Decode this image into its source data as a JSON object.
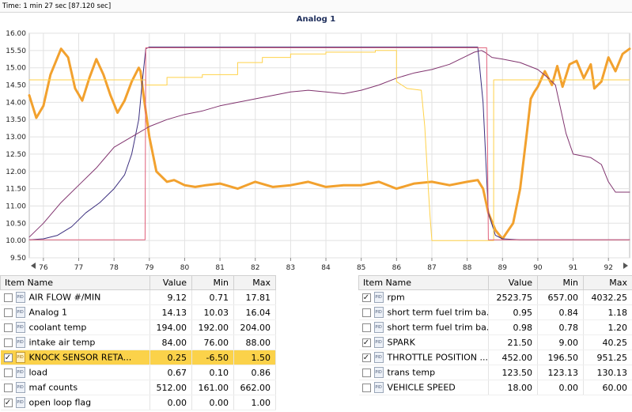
{
  "time_label": "Time: 1 min 27 sec [87.120 sec]",
  "chart_data": {
    "type": "line",
    "title": "Analog 1",
    "xlim": [
      75.6,
      92.6
    ],
    "ylim": [
      9.5,
      16.0
    ],
    "x_ticks": [
      "76",
      "77",
      "78",
      "79",
      "80",
      "81",
      "82",
      "83",
      "84",
      "85",
      "86",
      "87",
      "88",
      "89",
      "90",
      "91",
      "92"
    ],
    "y_ticks": [
      "9.50",
      "10.00",
      "10.50",
      "11.00",
      "11.50",
      "12.00",
      "12.50",
      "13.00",
      "13.50",
      "14.00",
      "14.50",
      "15.00",
      "15.50",
      "16.00"
    ],
    "grid": true,
    "series": [
      {
        "color": "#f2a12e",
        "width": 3,
        "x": [
          75.6,
          75.8,
          76.0,
          76.2,
          76.5,
          76.7,
          76.9,
          77.1,
          77.3,
          77.5,
          77.7,
          77.9,
          78.1,
          78.3,
          78.5,
          78.7,
          78.75,
          78.85,
          79.0,
          79.2,
          79.5,
          79.7,
          80.0,
          80.3,
          80.6,
          81.0,
          81.5,
          82.0,
          82.5,
          83.0,
          83.5,
          84.0,
          84.5,
          85.0,
          85.5,
          86.0,
          86.5,
          87.0,
          87.5,
          88.0,
          88.3,
          88.45,
          88.6,
          88.8,
          89.0,
          89.1,
          89.3,
          89.5,
          89.7,
          89.8,
          89.9,
          90.0,
          90.2,
          90.4,
          90.55,
          90.7,
          90.9,
          91.1,
          91.3,
          91.5,
          91.6,
          91.8,
          92.0,
          92.2,
          92.4,
          92.6
        ],
        "y": [
          14.2,
          13.55,
          13.9,
          14.8,
          15.55,
          15.3,
          14.4,
          14.05,
          14.7,
          15.25,
          14.8,
          14.2,
          13.7,
          14.05,
          14.6,
          15.0,
          14.9,
          14.1,
          13.0,
          12.0,
          11.7,
          11.75,
          11.6,
          11.55,
          11.6,
          11.65,
          11.5,
          11.7,
          11.55,
          11.6,
          11.7,
          11.55,
          11.6,
          11.6,
          11.7,
          11.5,
          11.65,
          11.7,
          11.6,
          11.7,
          11.75,
          11.5,
          10.8,
          10.3,
          10.05,
          10.2,
          10.5,
          11.5,
          13.2,
          14.1,
          14.3,
          14.45,
          14.9,
          14.5,
          15.05,
          14.45,
          15.1,
          15.2,
          14.7,
          15.1,
          14.4,
          14.6,
          15.3,
          14.9,
          15.4,
          15.55
        ]
      },
      {
        "color": "#3b2e7e",
        "width": 1,
        "x": [
          75.6,
          76.0,
          76.4,
          76.8,
          77.2,
          77.6,
          78.0,
          78.3,
          78.5,
          78.7,
          78.8,
          78.9,
          79.0,
          80.0,
          82.0,
          84.0,
          86.0,
          88.0,
          88.3,
          88.45,
          88.6,
          88.8,
          89.0,
          89.5,
          90.0,
          91.0,
          92.0,
          92.6
        ],
        "y": [
          10.02,
          10.05,
          10.15,
          10.4,
          10.8,
          11.1,
          11.5,
          11.9,
          12.5,
          13.5,
          14.6,
          15.55,
          15.6,
          15.6,
          15.6,
          15.6,
          15.6,
          15.6,
          15.6,
          14.0,
          10.8,
          10.15,
          10.05,
          10.02,
          10.02,
          10.02,
          10.02,
          10.02
        ]
      },
      {
        "color": "#80336e",
        "width": 1,
        "x": [
          75.6,
          76.0,
          76.5,
          77.0,
          77.5,
          78.0,
          78.5,
          79.0,
          79.5,
          80.0,
          80.5,
          81.0,
          81.5,
          82.0,
          82.5,
          83.0,
          83.5,
          84.0,
          84.5,
          85.0,
          85.5,
          86.0,
          86.5,
          87.0,
          87.5,
          88.0,
          88.2,
          88.4,
          88.5,
          88.7,
          89.0,
          89.5,
          90.0,
          90.3,
          90.5,
          90.8,
          91.0,
          91.5,
          91.8,
          92.0,
          92.2,
          92.6
        ],
        "y": [
          10.1,
          10.5,
          11.1,
          11.6,
          12.1,
          12.7,
          13.0,
          13.3,
          13.5,
          13.65,
          13.75,
          13.9,
          14.0,
          14.1,
          14.2,
          14.3,
          14.35,
          14.3,
          14.25,
          14.35,
          14.5,
          14.7,
          14.85,
          14.95,
          15.1,
          15.35,
          15.45,
          15.5,
          15.45,
          15.3,
          15.25,
          15.15,
          14.95,
          14.7,
          14.5,
          13.1,
          12.5,
          12.4,
          12.2,
          11.7,
          11.4,
          11.4
        ]
      },
      {
        "color": "#ffd24a",
        "width": 1,
        "x": [
          75.6,
          78.9,
          78.9,
          79.5,
          79.5,
          80.5,
          80.5,
          81.5,
          81.5,
          82.2,
          82.2,
          83.0,
          83.0,
          84.0,
          84.0,
          85.4,
          85.4,
          86.0,
          86.0,
          86.3,
          86.7,
          86.8,
          86.9,
          86.95,
          87.0,
          88.65,
          88.75,
          88.75,
          92.6
        ],
        "y": [
          14.65,
          14.65,
          14.5,
          14.5,
          14.72,
          14.72,
          14.8,
          14.8,
          15.15,
          15.15,
          15.3,
          15.3,
          15.4,
          15.4,
          15.45,
          15.45,
          15.5,
          15.5,
          14.6,
          14.4,
          14.35,
          13.3,
          11.5,
          10.7,
          10.0,
          10.0,
          10.0,
          14.65,
          14.65
        ]
      },
      {
        "color": "#e0607a",
        "width": 1,
        "x": [
          75.6,
          78.88,
          78.9,
          88.55,
          88.6,
          92.6
        ],
        "y": [
          10.02,
          10.02,
          15.58,
          15.58,
          10.02,
          10.02
        ]
      }
    ]
  },
  "left_table": {
    "headers": {
      "name": "Item Name",
      "value": "Value",
      "min": "Min",
      "max": "Max"
    },
    "rows": [
      {
        "checked": false,
        "name": "AIR FLOW #/MIN",
        "value": "9.12",
        "min": "0.71",
        "max": "17.81",
        "selected": false
      },
      {
        "checked": false,
        "name": "Analog 1",
        "value": "14.13",
        "min": "10.03",
        "max": "16.04",
        "selected": false
      },
      {
        "checked": false,
        "name": "coolant temp",
        "value": "194.00",
        "min": "192.00",
        "max": "204.00",
        "selected": false
      },
      {
        "checked": false,
        "name": "intake air temp",
        "value": "84.00",
        "min": "76.00",
        "max": "88.00",
        "selected": false
      },
      {
        "checked": true,
        "name": "KNOCK SENSOR RETA...",
        "value": "0.25",
        "min": "-6.50",
        "max": "1.50",
        "selected": true
      },
      {
        "checked": false,
        "name": "load",
        "value": "0.67",
        "min": "0.10",
        "max": "0.86",
        "selected": false
      },
      {
        "checked": false,
        "name": "maf counts",
        "value": "512.00",
        "min": "161.00",
        "max": "662.00",
        "selected": false
      },
      {
        "checked": true,
        "name": "open loop flag",
        "value": "0.00",
        "min": "0.00",
        "max": "1.00",
        "selected": false
      }
    ]
  },
  "right_table": {
    "headers": {
      "name": "Item Name",
      "value": "Value",
      "min": "Min",
      "max": "Max"
    },
    "rows": [
      {
        "checked": true,
        "name": "rpm",
        "value": "2523.75",
        "min": "657.00",
        "max": "4032.25"
      },
      {
        "checked": false,
        "name": "short term fuel trim ba...",
        "value": "0.95",
        "min": "0.84",
        "max": "1.18"
      },
      {
        "checked": false,
        "name": "short term fuel trim ba...",
        "value": "0.98",
        "min": "0.78",
        "max": "1.20"
      },
      {
        "checked": true,
        "name": "SPARK",
        "value": "21.50",
        "min": "9.00",
        "max": "40.25"
      },
      {
        "checked": true,
        "name": "THROTTLE POSITION ...",
        "value": "452.00",
        "min": "196.50",
        "max": "951.25"
      },
      {
        "checked": false,
        "name": "trans temp",
        "value": "123.50",
        "min": "123.13",
        "max": "130.13"
      },
      {
        "checked": false,
        "name": "VEHICLE SPEED",
        "value": "18.00",
        "min": "0.00",
        "max": "60.00"
      }
    ]
  }
}
